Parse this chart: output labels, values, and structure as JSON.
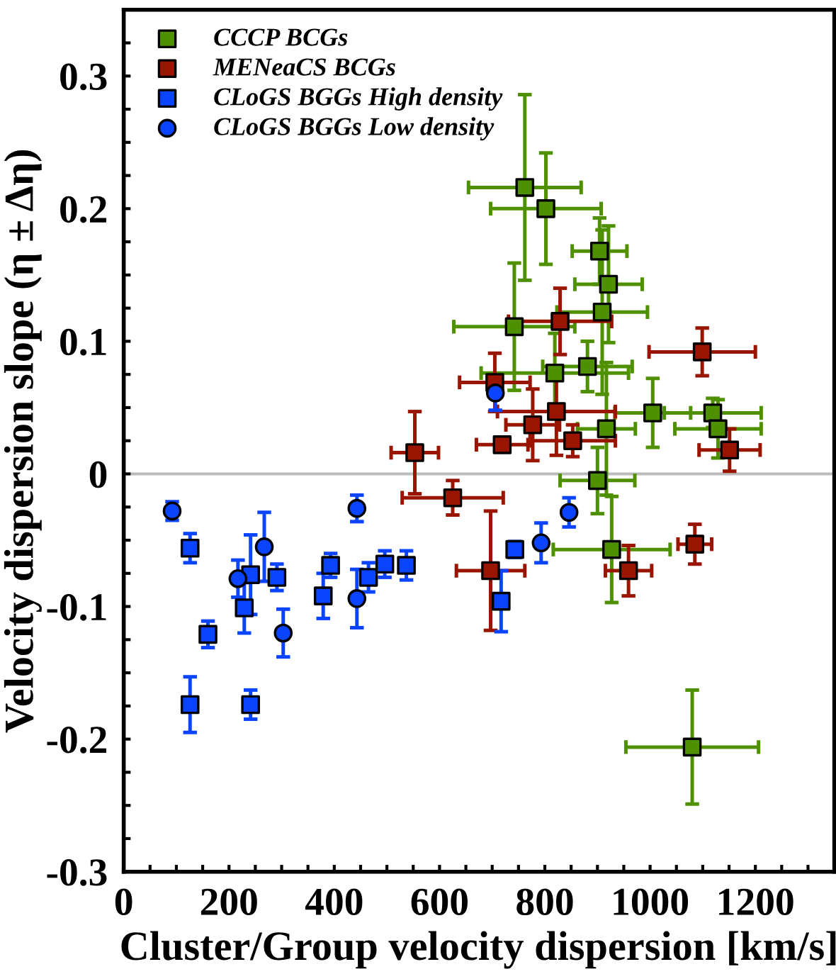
{
  "chart_data": {
    "type": "scatter",
    "xlabel": "Cluster/Group velocity dispersion [km/s]",
    "ylabel": "Velocity dispersion slope (η ± Δη)",
    "xlim": [
      0,
      1350
    ],
    "ylim": [
      -0.3,
      0.35
    ],
    "xticks": [
      0,
      {
        "value": 50,
        "label": null
      },
      200,
      {
        "value": 100,
        "label": null
      },
      {
        "value": 150,
        "label": null
      },
      {
        "value": 250,
        "label": null
      },
      {
        "value": 300,
        "label": null
      },
      {
        "value": 350,
        "label": null
      },
      400,
      {
        "value": 450,
        "label": null
      },
      {
        "value": 500,
        "label": null
      },
      {
        "value": 550,
        "label": null
      },
      600,
      {
        "value": 650,
        "label": null
      },
      {
        "value": 700,
        "label": null
      },
      {
        "value": 750,
        "label": null
      },
      800,
      {
        "value": 850,
        "label": null
      },
      {
        "value": 900,
        "label": null
      },
      {
        "value": 950,
        "label": null
      },
      1000,
      {
        "value": 1050,
        "label": null
      },
      {
        "value": 1100,
        "label": null
      },
      {
        "value": 1150,
        "label": null
      },
      1200,
      {
        "value": 1250,
        "label": null
      },
      {
        "value": 1300,
        "label": null
      }
    ],
    "yticks": [
      -0.3,
      {
        "value": -0.275,
        "label": null
      },
      {
        "value": -0.25,
        "label": null
      },
      {
        "value": -0.225,
        "label": null
      },
      -0.2,
      {
        "value": -0.175,
        "label": null
      },
      {
        "value": -0.15,
        "label": null
      },
      {
        "value": -0.125,
        "label": null
      },
      -0.1,
      {
        "value": -0.075,
        "label": null
      },
      {
        "value": -0.05,
        "label": null
      },
      {
        "value": -0.025,
        "label": null
      },
      0,
      {
        "value": 0.025,
        "label": null
      },
      {
        "value": 0.05,
        "label": null
      },
      {
        "value": 0.075,
        "label": null
      },
      0.1,
      {
        "value": 0.125,
        "label": null
      },
      {
        "value": 0.15,
        "label": null
      },
      {
        "value": 0.175,
        "label": null
      },
      0.2,
      {
        "value": 0.225,
        "label": null
      },
      {
        "value": 0.25,
        "label": null
      },
      {
        "value": 0.275,
        "label": null
      },
      0.3,
      {
        "value": 0.325,
        "label": null
      }
    ],
    "grid": false,
    "legend": "top left",
    "ref_lines": [
      {
        "axis": "y",
        "value": 0,
        "color": "#bbbbbb"
      }
    ],
    "series": [
      {
        "name": "CCCP BCGs",
        "color": "#4f9000",
        "marker": "square",
        "x": [
          762,
          802,
          904,
          921,
          909,
          742,
          881,
          819,
          1005,
          1119,
          1129,
          917,
          900,
          927,
          1080
        ],
        "values": [
          0.216,
          0.2,
          0.168,
          0.143,
          0.122,
          0.111,
          0.081,
          0.076,
          0.046,
          0.046,
          0.034,
          0.034,
          -0.005,
          -0.057,
          -0.206
        ],
        "errors": [
          0.07,
          0.042,
          0.025,
          0.044,
          0.062,
          0.048,
          0.019,
          0.03,
          0.026,
          0.011,
          0.022,
          0.05,
          0.025,
          0.04,
          0.043
        ],
        "xerrors": [
          107,
          105,
          52,
          64,
          86,
          115,
          85,
          140,
          72,
          92,
          82,
          55,
          71,
          111,
          126
        ]
      },
      {
        "name": "MENeaCS BCGs",
        "color": "#9a1500",
        "marker": "square",
        "x": [
          1099,
          829,
          705,
          822,
          777,
          719,
          853,
          1151,
          553,
          625,
          697,
          959,
          1085
        ],
        "values": [
          0.092,
          0.115,
          0.069,
          0.047,
          0.037,
          0.022,
          0.025,
          0.018,
          0.016,
          -0.018,
          -0.073,
          -0.073,
          -0.053
        ],
        "errors": [
          0.018,
          0.025,
          0.022,
          0.033,
          0.027,
          0.004,
          0.012,
          0.016,
          0.031,
          0.013,
          0.045,
          0.019,
          0.015
        ],
        "xerrors": [
          101,
          98,
          67,
          112,
          51,
          49,
          81,
          58,
          45,
          96,
          65,
          44,
          32
        ]
      },
      {
        "name": "CLoGS BGGs High density",
        "color": "#0a44ff",
        "marker": "square",
        "x": [
          126,
          160,
          126,
          241,
          229,
          241,
          291,
          379,
          393,
          465,
          496,
          537,
          717,
          743
        ],
        "values": [
          -0.056,
          -0.121,
          -0.174,
          -0.174,
          -0.101,
          -0.076,
          -0.078,
          -0.092,
          -0.069,
          -0.078,
          -0.068,
          -0.069,
          -0.096,
          -0.057
        ],
        "errors": [
          0.011,
          0.01,
          0.021,
          0.011,
          0.019,
          0.03,
          0.01,
          0.017,
          0.009,
          0.011,
          0.01,
          0.011,
          0.023,
          0.006
        ]
      },
      {
        "name": "CLoGS BGGs Low density",
        "color": "#0a44ff",
        "marker": "circle",
        "x": [
          92,
          217,
          267,
          303,
          443,
          443,
          793,
          846,
          706
        ],
        "values": [
          -0.028,
          -0.079,
          -0.055,
          -0.12,
          -0.026,
          -0.094,
          -0.052,
          -0.029,
          0.061
        ],
        "errors": [
          0.007,
          0.014,
          0.026,
          0.018,
          0.01,
          0.022,
          0.015,
          0.011,
          0.013
        ]
      }
    ]
  }
}
